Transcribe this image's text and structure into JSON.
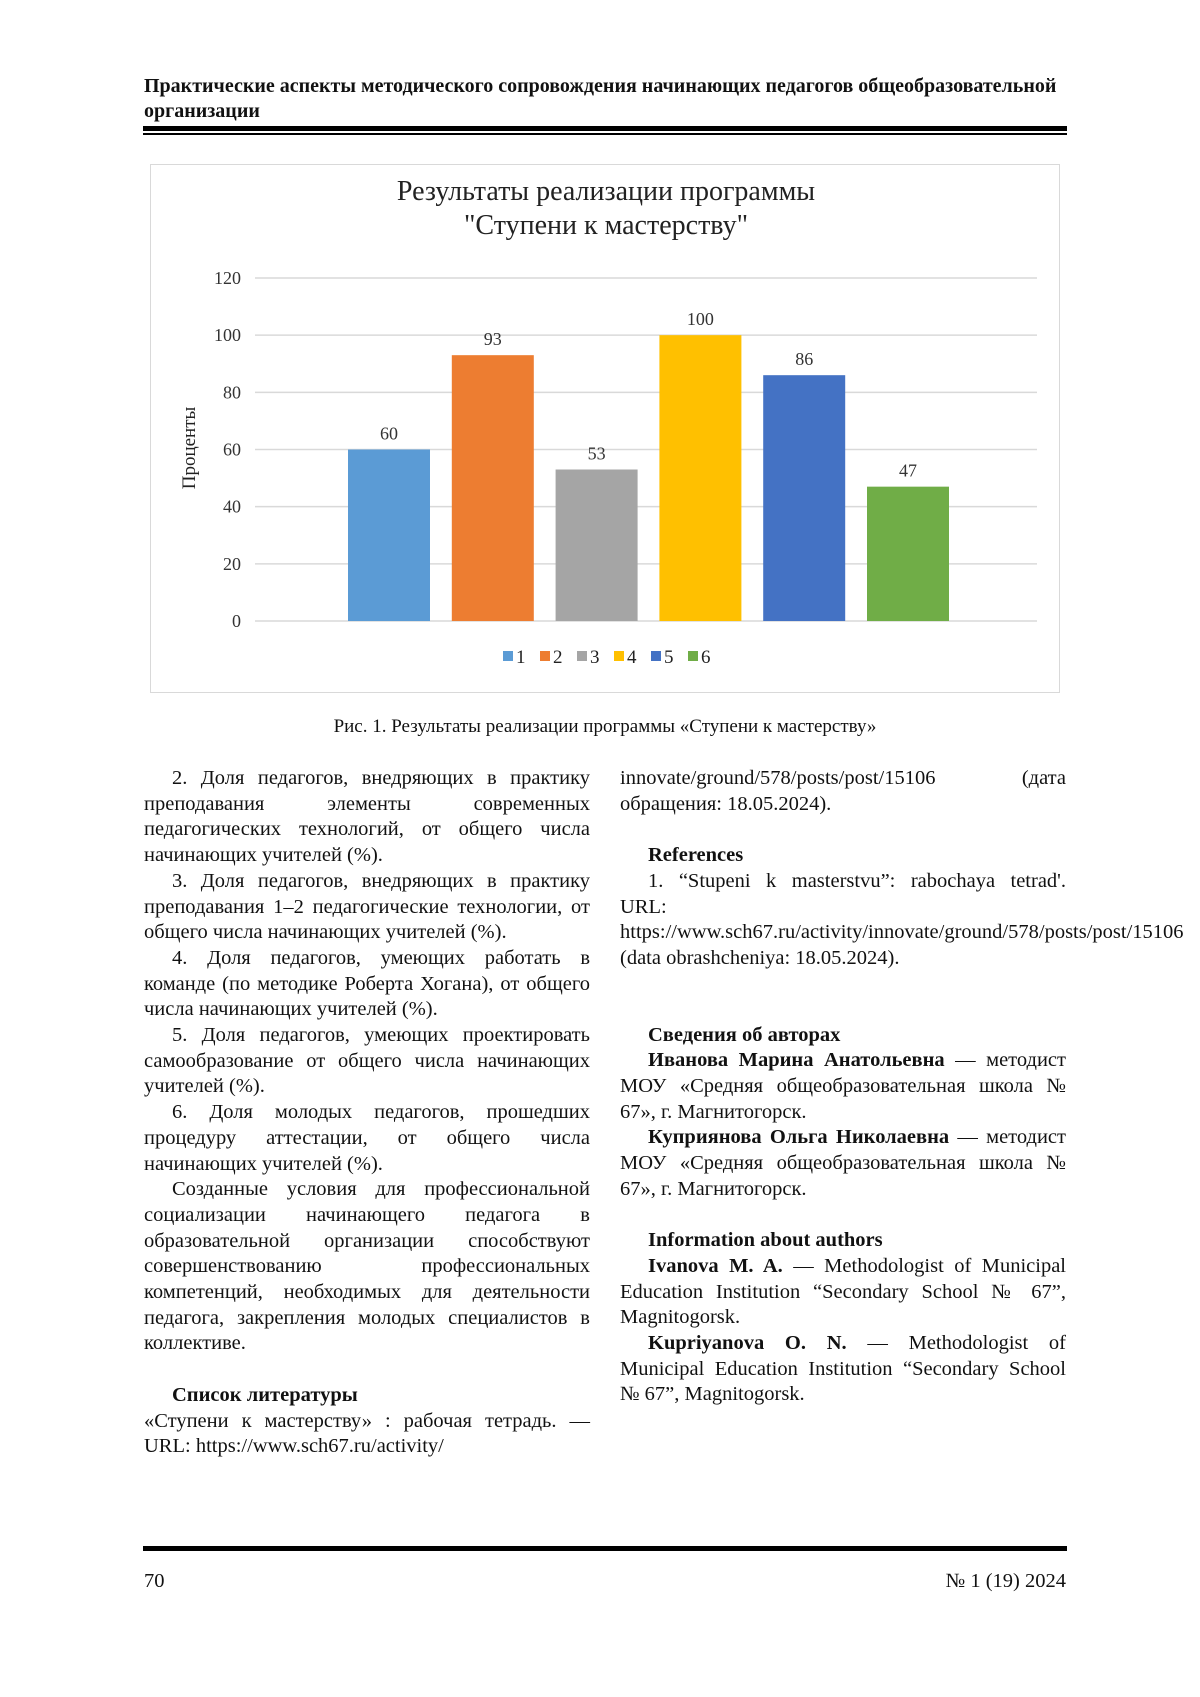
{
  "header": {
    "title": "Практические аспекты методического сопровождения начинающих педагогов общеобразовательной организации"
  },
  "chart_data": {
    "type": "bar",
    "title_line1": "Результаты реализации программы",
    "title_line2": "\"Ступени к мастерству\"",
    "categories": [
      "1",
      "2",
      "3",
      "4",
      "5",
      "6"
    ],
    "values": [
      60,
      93,
      53,
      100,
      86,
      47
    ],
    "colors": [
      "#5b9bd5",
      "#ed7d31",
      "#a5a5a5",
      "#ffc000",
      "#4472c4",
      "#70ad47"
    ],
    "xlabel": "",
    "ylabel": "Проценты",
    "ylim": [
      0,
      120
    ],
    "yticks": [
      0,
      20,
      40,
      60,
      80,
      100,
      120
    ],
    "grid": true,
    "legend": "bottom",
    "data_labels": true
  },
  "caption": "Рис. 1. Результаты реализации программы «Ступени к мастерству»",
  "left": {
    "items": [
      "2. Доля педагогов, внедряющих в практику преподавания элементы современных педагогических технологий, от общего числа начинающих учителей (%).",
      "3. Доля педагогов, внедряющих в практику преподавания 1–2 педагогические технологии, от общего числа начинающих учителей (%).",
      "4. Доля педагогов, умеющих работать в команде (по методике Роберта Хогана), от общего числа начинающих учителей (%).",
      "5. Доля педагогов, умеющих проектировать самообразование от общего числа начинающих учителей (%).",
      "6. Доля молодых педагогов, прошедших процедуру аттестации, от общего числа начинающих учителей (%).",
      "Созданные условия для профессиональной социализации начинающего педагога в образовательной организации способствуют совершенствованию профессиональных компетенций, необходимых для деятельности педагога, закрепления молодых специалистов в коллективе."
    ],
    "lit_heading": "Список литературы",
    "lit_text": "«Ступени к мастерству» : рабочая тетрадь. — URL: https://www.sch67.ru/activity/"
  },
  "right": {
    "lit_cont": "innovate/ground/578/posts/post/15106 (дата обращения: 18.05.2024).",
    "ref_heading": "References",
    "ref_text": "1. “Stupeni k masterstvu”: rabochaya tetrad'. URL: https://www.sch67.ru/activity/innovate/ground/578/posts/post/15106 (data obrashcheniya: 18.05.2024).",
    "authors_heading": "Сведения об авторах",
    "author1_name": "Иванова Марина Анатольевна",
    "author1_text": " — методист МОУ «Средняя общеобразовательная школа № 67», г. Магнитогорск.",
    "author2_name": "Куприянова Ольга Николаевна",
    "author2_text": " — методист МОУ «Средняя общеобразовательная школа № 67», г. Магнитогорск.",
    "info_heading": "Information about authors",
    "en1_name": "Ivanova M. A.",
    "en1_text": " — Methodologist of Municipal Education Institution “Secondary School № 67”, Magnitogorsk.",
    "en2_name": "Kupriyanova O. N.",
    "en2_text": " — Methodologist of Municipal Education Institution “Secondary School № 67”, Magnitogorsk."
  },
  "footer": {
    "page": "70",
    "issue": "№ 1 (19) 2024"
  }
}
